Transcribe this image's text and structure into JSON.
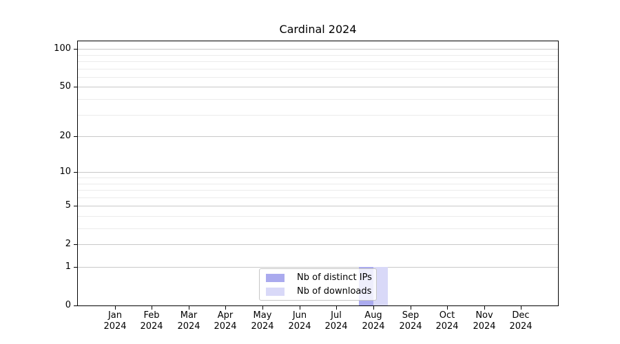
{
  "title": "Cardinal 2024",
  "colors": {
    "distinct_ips": "#aaaaee",
    "downloads": "#d9d9f8",
    "grid_major": "#c8c8c8",
    "grid_minor": "#ebebeb",
    "axis": "#000000",
    "legend_border": "#c5c5c5"
  },
  "chart_data": {
    "type": "bar",
    "title": "Cardinal 2024",
    "categories": [
      "Jan 2024",
      "Feb 2024",
      "Mar 2024",
      "Apr 2024",
      "May 2024",
      "Jun 2024",
      "Jul 2024",
      "Aug 2024",
      "Sep 2024",
      "Oct 2024",
      "Nov 2024",
      "Dec 2024"
    ],
    "series": [
      {
        "name": "Nb of distinct IPs",
        "color": "#aaaaee",
        "values": [
          0,
          0,
          0,
          0,
          0,
          0,
          0,
          1,
          0,
          0,
          0,
          0
        ]
      },
      {
        "name": "Nb of downloads",
        "color": "#d9d9f8",
        "values": [
          0,
          0,
          0,
          0,
          0,
          0,
          0,
          1,
          0,
          0,
          0,
          0
        ]
      }
    ],
    "xlabel": "",
    "ylabel": "",
    "yscale": "log1p",
    "ylim": [
      0,
      115
    ],
    "yticks_major": [
      0,
      1,
      2,
      5,
      10,
      20,
      50,
      100
    ],
    "yticks_minor": [
      3,
      4,
      6,
      7,
      8,
      9,
      30,
      40,
      60,
      70,
      80,
      90
    ],
    "grid": "horizontal-only",
    "legend_position": "bottom-center-inside"
  }
}
